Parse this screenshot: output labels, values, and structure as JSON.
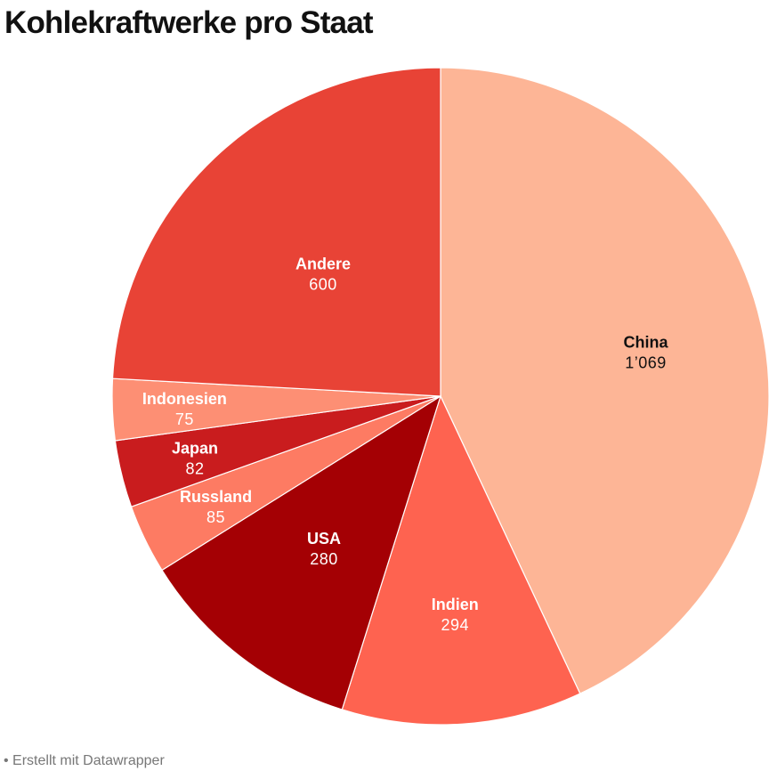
{
  "page": {
    "title": "Kohlekraftwerke pro Staat",
    "footer": "• Erstellt mit Datawrapper"
  },
  "chart_data": {
    "type": "pie",
    "title": "Kohlekraftwerke pro Staat",
    "start_angle_deg": 0,
    "direction": "clockwise",
    "slices": [
      {
        "label": "China",
        "value": 1069,
        "value_label": "1’069",
        "color": "#fdb596",
        "text_color": "#111111"
      },
      {
        "label": "Indien",
        "value": 294,
        "value_label": "294",
        "color": "#fe6350",
        "text_color": "#ffffff"
      },
      {
        "label": "USA",
        "value": 280,
        "value_label": "280",
        "color": "#a40004",
        "text_color": "#ffffff"
      },
      {
        "label": "Russland",
        "value": 85,
        "value_label": "85",
        "color": "#fd7b63",
        "text_color": "#ffffff"
      },
      {
        "label": "Japan",
        "value": 82,
        "value_label": "82",
        "color": "#c91c1e",
        "text_color": "#ffffff"
      },
      {
        "label": "Indonesien",
        "value": 75,
        "value_label": "75",
        "color": "#fd8f74",
        "text_color": "#ffffff"
      },
      {
        "label": "Andere",
        "value": 600,
        "value_label": "600",
        "color": "#e84336",
        "text_color": "#ffffff"
      }
    ]
  }
}
